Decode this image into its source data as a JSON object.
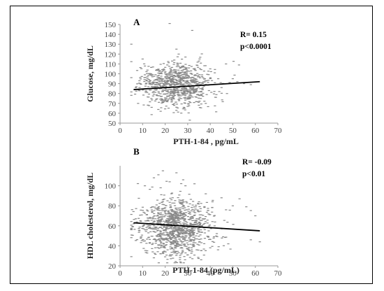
{
  "chart_data": [
    {
      "type": "scatter",
      "panel_label": "A",
      "xlabel": "PTH-1-84 , pg/mL",
      "ylabel": "Glucose, mg/dL",
      "xlim": [
        0,
        70
      ],
      "ylim": [
        50,
        150
      ],
      "x_ticks": [
        0,
        10,
        20,
        30,
        40,
        50,
        60,
        70
      ],
      "y_ticks": [
        50,
        60,
        70,
        80,
        90,
        100,
        110,
        120,
        130,
        140,
        150
      ],
      "annotations": [
        "R= 0.15",
        "p<0.0001"
      ],
      "trendline": {
        "x": [
          6,
          62
        ],
        "y": [
          84,
          92
        ]
      },
      "point_color": "#888888",
      "line_color": "#000000",
      "grid": false,
      "point_distribution": {
        "x_center": 22,
        "x_spread": 8,
        "y_center": 89,
        "y_spread": 11,
        "count": 850
      },
      "points": [
        [
          10,
          115
        ],
        [
          11,
          99
        ],
        [
          26,
          120
        ],
        [
          22,
          151
        ],
        [
          32,
          144
        ],
        [
          25,
          125
        ],
        [
          29,
          117
        ],
        [
          35,
          113
        ],
        [
          40,
          105
        ],
        [
          47,
          110
        ],
        [
          42,
          101
        ],
        [
          50,
          95
        ],
        [
          55,
          90
        ],
        [
          45,
          86
        ],
        [
          52,
          92
        ],
        [
          58,
          89
        ],
        [
          8,
          70
        ],
        [
          14,
          66
        ],
        [
          18,
          62
        ],
        [
          30,
          67
        ],
        [
          38,
          70
        ],
        [
          24,
          68
        ],
        [
          16,
          74
        ],
        [
          20,
          73
        ],
        [
          12,
          81
        ],
        [
          36,
          78
        ],
        [
          44,
          82
        ],
        [
          9,
          90
        ],
        [
          13,
          100
        ],
        [
          28,
          108
        ],
        [
          33,
          95
        ],
        [
          19,
          103
        ]
      ]
    },
    {
      "type": "scatter",
      "panel_label": "B",
      "xlabel": "PTH-1-84  (pg/mL)",
      "ylabel": "HDL cholesterol, mg/dL",
      "xlim": [
        0,
        70
      ],
      "ylim": [
        20,
        120
      ],
      "x_ticks": [
        0,
        10,
        20,
        30,
        40,
        50,
        60,
        70
      ],
      "y_ticks": [
        20,
        40,
        60,
        80,
        100
      ],
      "annotations": [
        "R= -0.09",
        "p<0.01"
      ],
      "trendline": {
        "x": [
          6,
          62
        ],
        "y": [
          63,
          55
        ]
      },
      "point_color": "#888888",
      "line_color": "#000000",
      "grid": false,
      "point_distribution": {
        "x_center": 22,
        "x_spread": 8,
        "y_center": 58,
        "y_spread": 14,
        "count": 1100
      },
      "points": [
        [
          19,
          115
        ],
        [
          17,
          111
        ],
        [
          25,
          113
        ],
        [
          15,
          108
        ],
        [
          28,
          106
        ],
        [
          22,
          104
        ],
        [
          33,
          102
        ],
        [
          11,
          100
        ],
        [
          29,
          100
        ],
        [
          18,
          98
        ],
        [
          38,
          92
        ],
        [
          45,
          88
        ],
        [
          53,
          87
        ],
        [
          50,
          80
        ],
        [
          56,
          79
        ],
        [
          60,
          70
        ],
        [
          47,
          76
        ],
        [
          41,
          84
        ],
        [
          35,
          84
        ],
        [
          62,
          44
        ],
        [
          58,
          46
        ],
        [
          48,
          42
        ],
        [
          12,
          35
        ],
        [
          18,
          32
        ],
        [
          26,
          33
        ],
        [
          22,
          30
        ],
        [
          30,
          31
        ],
        [
          15,
          28
        ],
        [
          20,
          29
        ],
        [
          34,
          36
        ],
        [
          40,
          38
        ]
      ]
    }
  ]
}
